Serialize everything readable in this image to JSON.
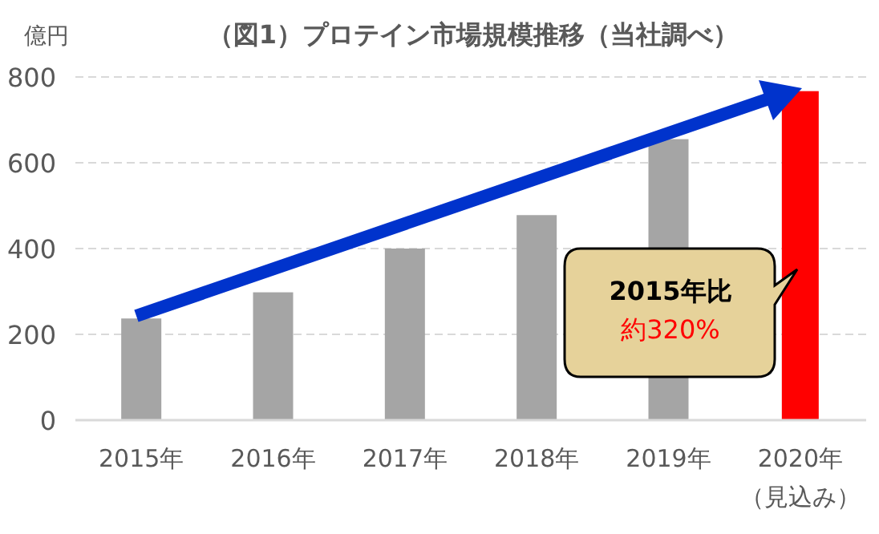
{
  "chart_data": {
    "type": "bar",
    "title": "（図1）プロテイン市場規模推移（当社調べ）",
    "ylabel": "億円",
    "categories": [
      "2015年",
      "2016年",
      "2017年",
      "2018年",
      "2019年",
      "2020年（見込み）"
    ],
    "values": [
      237,
      298,
      400,
      478,
      655,
      767
    ],
    "colors": [
      "#a5a5a5",
      "#a5a5a5",
      "#a5a5a5",
      "#a5a5a5",
      "#a5a5a5",
      "#ff0000"
    ],
    "ylim": [
      0,
      800
    ],
    "yticks": [
      0,
      200,
      400,
      600,
      800
    ],
    "grid": "y",
    "annotations": [
      "2015年比",
      "約320%"
    ]
  }
}
